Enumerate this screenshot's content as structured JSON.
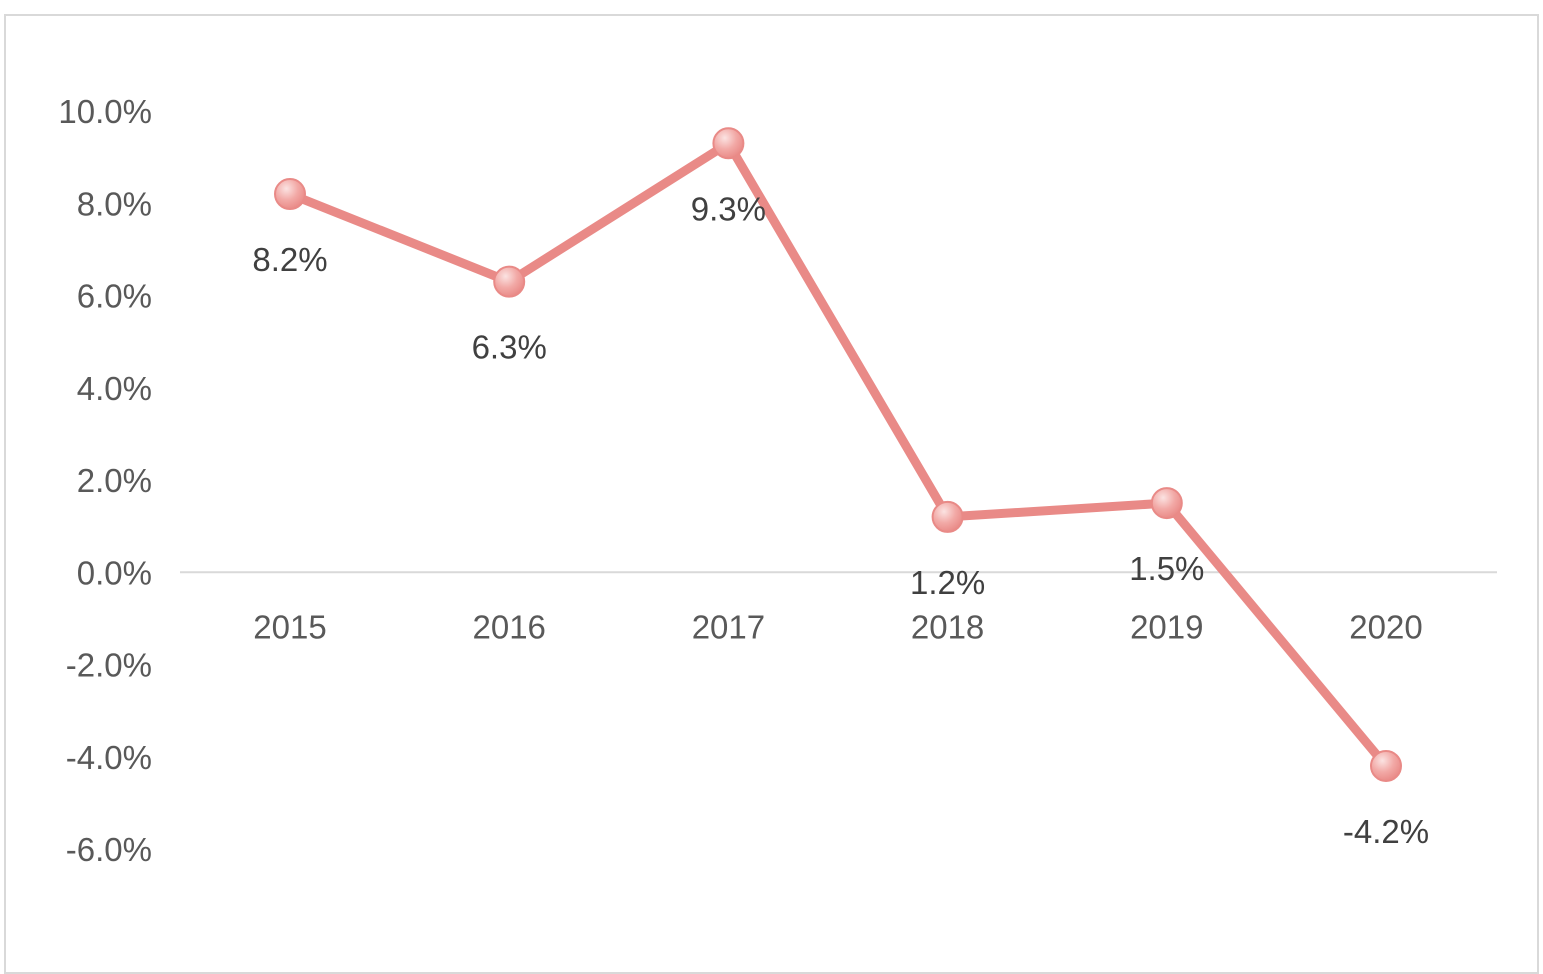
{
  "chart_data": {
    "type": "line",
    "categories": [
      "2015",
      "2016",
      "2017",
      "2018",
      "2019",
      "2020"
    ],
    "series": [
      {
        "values": [
          8.2,
          6.3,
          9.3,
          1.2,
          1.5,
          -4.2
        ],
        "data_labels": [
          "8.2%",
          "6.3%",
          "9.3%",
          "1.2%",
          "1.5%",
          "-4.2%"
        ]
      }
    ],
    "y_ticks": [
      10,
      8,
      6,
      4,
      2,
      0,
      -2,
      -4,
      -6
    ],
    "y_tick_labels": [
      "10.0%",
      "8.0%",
      "6.0%",
      "4.0%",
      "2.0%",
      "0.0%",
      "-2.0%",
      "-4.0%",
      "-6.0%"
    ],
    "ylim": [
      -6,
      10
    ],
    "title": "",
    "xlabel": "",
    "ylabel": "",
    "grid": false,
    "legend": "none",
    "colors": {
      "line": "#E98A87",
      "marker_fill": "#F2A9A6",
      "marker_highlight": "#FBE3E2",
      "axis": "#d9d9d9",
      "text": "#595959"
    }
  }
}
